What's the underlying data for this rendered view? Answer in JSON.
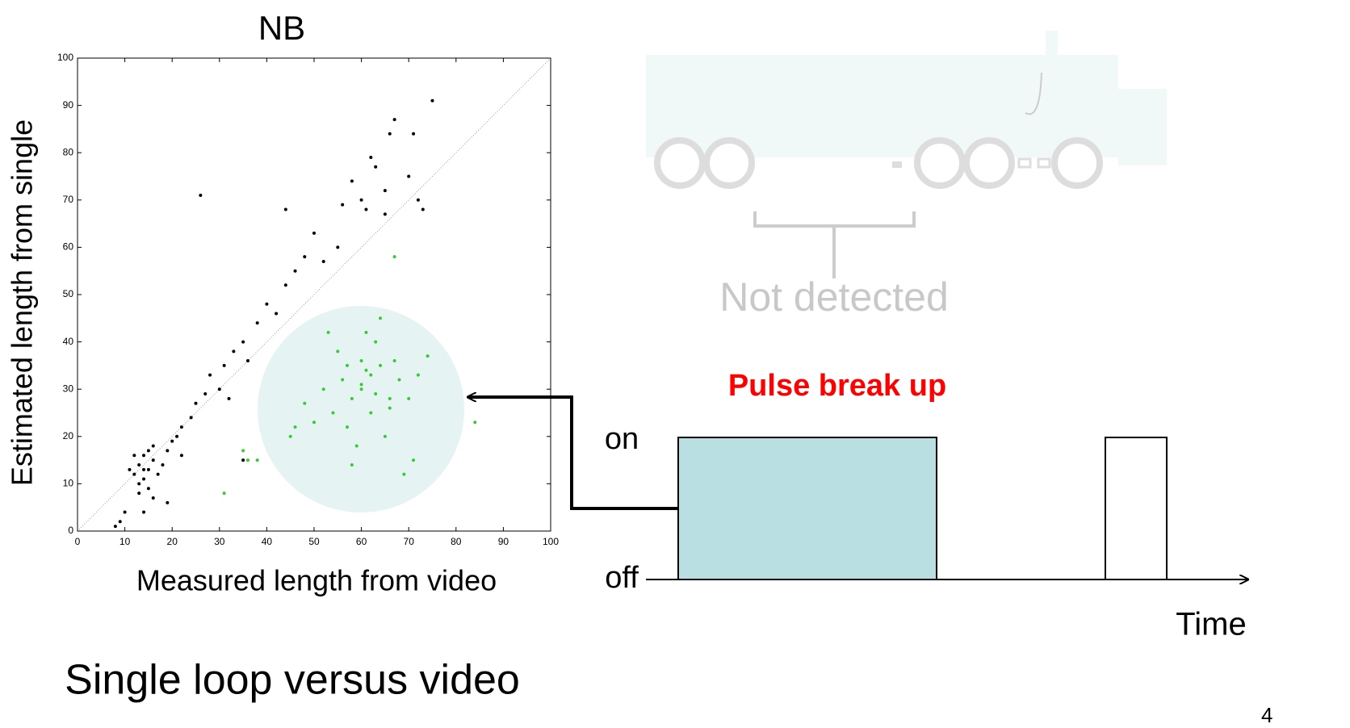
{
  "chart_data": {
    "type": "scatter",
    "title": "NB",
    "x_label": "Measured length from video",
    "y_label": "Estimated length from single",
    "xlim": [
      0,
      100
    ],
    "ylim": [
      0,
      100
    ],
    "xticks": [
      0,
      10,
      20,
      30,
      40,
      50,
      60,
      70,
      80,
      90,
      100
    ],
    "yticks": [
      0,
      10,
      20,
      30,
      40,
      50,
      60,
      70,
      80,
      90,
      100
    ],
    "series": [
      {
        "color": "#000000",
        "x": [
          12,
          13,
          14,
          15,
          16,
          14,
          13,
          15,
          17,
          16,
          12,
          11,
          18,
          14,
          15,
          13,
          16,
          19,
          20,
          21,
          22,
          24,
          25,
          27,
          28,
          30,
          31,
          32,
          33,
          35,
          36,
          38,
          40,
          42,
          44,
          46,
          48,
          50,
          52,
          55,
          56,
          58,
          60,
          61,
          63,
          65,
          66,
          67,
          70,
          71,
          72,
          73,
          75,
          26,
          9,
          10,
          8,
          19,
          14,
          22,
          35,
          44,
          62,
          65
        ],
        "values": [
          12,
          14,
          11,
          13,
          15,
          16,
          10,
          9,
          12,
          18,
          16,
          13,
          14,
          13,
          17,
          8,
          7,
          17,
          19,
          20,
          22,
          24,
          27,
          29,
          33,
          30,
          35,
          28,
          38,
          40,
          36,
          44,
          48,
          46,
          52,
          55,
          58,
          63,
          57,
          60,
          69,
          74,
          70,
          68,
          77,
          72,
          84,
          87,
          75,
          84,
          70,
          68,
          91,
          71,
          2,
          4,
          1,
          6,
          4,
          16,
          15,
          68,
          79,
          67
        ]
      },
      {
        "color": "#33cc33",
        "x": [
          60,
          62,
          58,
          64,
          56,
          66,
          60,
          54,
          68,
          63,
          57,
          65,
          52,
          70,
          61,
          59,
          50,
          67,
          55,
          62,
          48,
          72,
          46,
          64,
          58,
          71,
          69,
          45,
          53,
          66,
          60,
          63,
          61,
          57,
          84,
          35,
          36,
          38,
          31,
          67,
          74
        ],
        "values": [
          30,
          33,
          28,
          35,
          32,
          26,
          36,
          25,
          32,
          40,
          22,
          20,
          30,
          28,
          42,
          18,
          23,
          36,
          38,
          25,
          27,
          33,
          22,
          45,
          14,
          15,
          12,
          20,
          42,
          28,
          31,
          29,
          34,
          35,
          23,
          17,
          15,
          15,
          8,
          58,
          37
        ]
      }
    ]
  },
  "caption": "Single loop versus video",
  "diagram": {
    "missed_label": "Not detected",
    "headline": "Pulse break up",
    "on_label": "on",
    "off_label": "off",
    "axis_label": "Time",
    "page_number": "4"
  }
}
